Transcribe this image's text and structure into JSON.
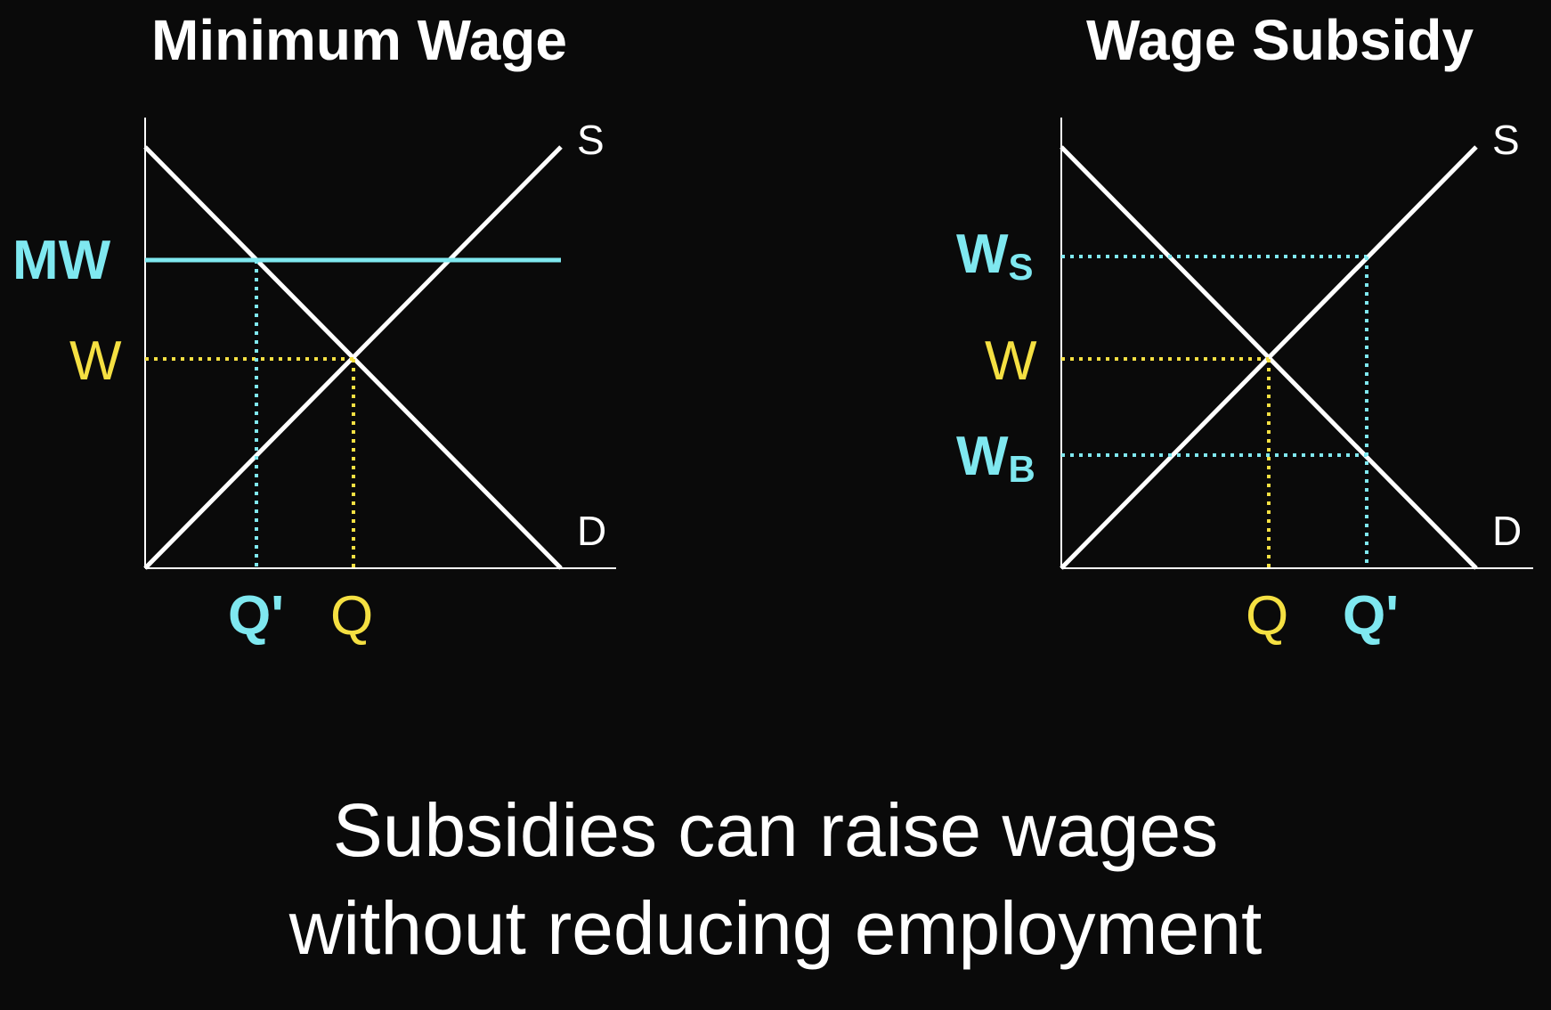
{
  "colors": {
    "background": "#0a0a0a",
    "curves": "#ffffff",
    "equilibrium": "#f5e042",
    "policy": "#7fe8f0"
  },
  "panels": [
    {
      "title": "Minimum Wage",
      "supply_label": "S",
      "demand_label": "D",
      "wage_labels": {
        "policy": "MW",
        "equilibrium": "W"
      },
      "quantity_labels": {
        "policy": "Q'",
        "equilibrium": "Q"
      }
    },
    {
      "title": "Wage Subsidy",
      "supply_label": "S",
      "demand_label": "D",
      "wage_labels": {
        "seller": "W",
        "seller_sub": "S",
        "equilibrium": "W",
        "buyer": "W",
        "buyer_sub": "B"
      },
      "quantity_labels": {
        "equilibrium": "Q",
        "policy": "Q'"
      }
    }
  ],
  "caption": {
    "line1": "Subsidies can raise wages",
    "line2": "without reducing employment"
  }
}
